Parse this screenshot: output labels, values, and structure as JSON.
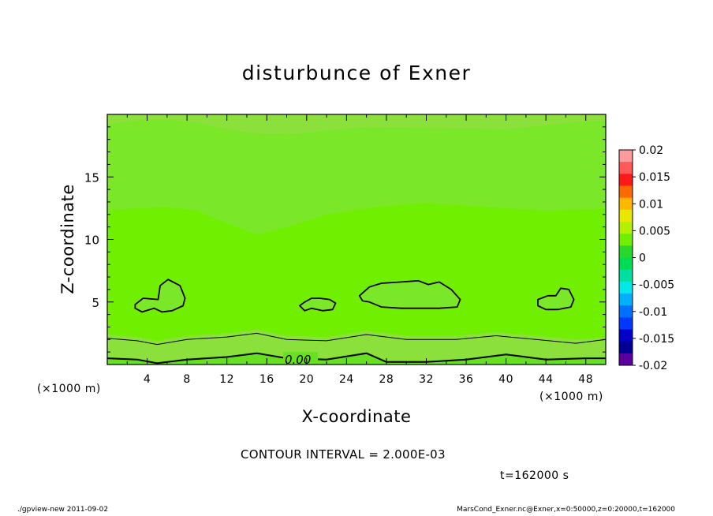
{
  "chart_data": {
    "type": "heatmap",
    "title": "disturbunce of Exner",
    "xlabel": "X-coordinate",
    "ylabel": "Z-coordinate",
    "x_unit_left": "(×1000 m)",
    "x_unit_right": "(×1000 m)",
    "xlim": [
      0,
      50
    ],
    "ylim": [
      0,
      20
    ],
    "x_ticks": [
      4,
      8,
      12,
      16,
      20,
      24,
      28,
      32,
      36,
      40,
      44,
      48
    ],
    "y_ticks": [
      5,
      10,
      15
    ],
    "contour_label": "0.00",
    "colorbar": {
      "ticks": [
        "0.02",
        "0.015",
        "0.01",
        "0.005",
        "0",
        "-0.005",
        "-0.01",
        "-0.015",
        "-0.02"
      ],
      "colors": [
        "#ff9a9a",
        "#ff5a5a",
        "#ff1a1a",
        "#ff6a00",
        "#ffb800",
        "#e8e800",
        "#b4f000",
        "#70f000",
        "#2ad82a",
        "#00dd55",
        "#00e0a0",
        "#00e8e8",
        "#00b0ff",
        "#0070ff",
        "#0038ff",
        "#0000c8",
        "#000090",
        "#5a00a0"
      ]
    },
    "layers": [
      {
        "name": "band-upper",
        "color": "#8ce03c",
        "points": [
          [
            0,
            19.2
          ],
          [
            3,
            19.5
          ],
          [
            6,
            19.6
          ],
          [
            9,
            19.3
          ],
          [
            12,
            18.8
          ],
          [
            15,
            18.5
          ],
          [
            18,
            18.4
          ],
          [
            21,
            18.6
          ],
          [
            26,
            19.0
          ],
          [
            32,
            18.9
          ],
          [
            40,
            18.8
          ],
          [
            46,
            19.3
          ],
          [
            50,
            19.5
          ],
          [
            50,
            20
          ],
          [
            0,
            20
          ]
        ]
      },
      {
        "name": "band-mid-upper",
        "color": "#7ae828",
        "points": [
          [
            0,
            12.3
          ],
          [
            3,
            12.5
          ],
          [
            6,
            12.6
          ],
          [
            9,
            12.3
          ],
          [
            12,
            11.3
          ],
          [
            15,
            10.4
          ],
          [
            18,
            11.0
          ],
          [
            22,
            12.0
          ],
          [
            27,
            12.6
          ],
          [
            32,
            12.9
          ],
          [
            38,
            12.6
          ],
          [
            44,
            12.3
          ],
          [
            48,
            12.4
          ],
          [
            50,
            12.5
          ],
          [
            50,
            19.5
          ],
          [
            46,
            19.3
          ],
          [
            40,
            18.8
          ],
          [
            32,
            18.9
          ],
          [
            26,
            19.0
          ],
          [
            21,
            18.6
          ],
          [
            18,
            18.4
          ],
          [
            15,
            18.5
          ],
          [
            12,
            18.8
          ],
          [
            9,
            19.3
          ],
          [
            6,
            19.6
          ],
          [
            3,
            19.5
          ],
          [
            0,
            19.2
          ]
        ]
      },
      {
        "name": "band-lower",
        "color": "#8ce03c",
        "points": [
          [
            0,
            2.4
          ],
          [
            3,
            2.2
          ],
          [
            5,
            1.9
          ],
          [
            8,
            2.3
          ],
          [
            12,
            2.5
          ],
          [
            15,
            2.8
          ],
          [
            18,
            2.3
          ],
          [
            22,
            2.2
          ],
          [
            26,
            2.7
          ],
          [
            30,
            2.3
          ],
          [
            35,
            2.3
          ],
          [
            39,
            2.6
          ],
          [
            43,
            2.3
          ],
          [
            47,
            2.0
          ],
          [
            50,
            2.2
          ],
          [
            50,
            0
          ],
          [
            0,
            0
          ]
        ]
      },
      {
        "name": "band-bottom",
        "color": "#66e020",
        "points": [
          [
            0,
            0.6
          ],
          [
            3,
            0.5
          ],
          [
            5,
            0.2
          ],
          [
            8,
            0.5
          ],
          [
            12,
            0.7
          ],
          [
            15,
            1.0
          ],
          [
            18,
            0.6
          ],
          [
            22,
            0.5
          ],
          [
            26,
            1.0
          ],
          [
            28,
            0.3
          ],
          [
            32,
            0.3
          ],
          [
            36,
            0.5
          ],
          [
            40,
            0.9
          ],
          [
            44,
            0.5
          ],
          [
            48,
            0.6
          ],
          [
            50,
            0.6
          ],
          [
            50,
            0
          ],
          [
            0,
            0
          ]
        ]
      }
    ],
    "blobs": [
      {
        "name": "blob-1",
        "points": [
          [
            2.8,
            4.8
          ],
          [
            3.6,
            5.3
          ],
          [
            5.1,
            5.2
          ],
          [
            5.3,
            6.3
          ],
          [
            6.1,
            6.8
          ],
          [
            7.3,
            6.3
          ],
          [
            7.8,
            5.3
          ],
          [
            7.6,
            4.7
          ],
          [
            6.5,
            4.3
          ],
          [
            5.5,
            4.2
          ],
          [
            4.7,
            4.5
          ],
          [
            3.5,
            4.2
          ],
          [
            2.8,
            4.5
          ]
        ]
      },
      {
        "name": "blob-2",
        "points": [
          [
            19.3,
            4.7
          ],
          [
            19.8,
            5.0
          ],
          [
            20.5,
            5.3
          ],
          [
            21.3,
            5.3
          ],
          [
            22.3,
            5.2
          ],
          [
            22.9,
            4.9
          ],
          [
            22.6,
            4.4
          ],
          [
            21.6,
            4.3
          ],
          [
            20.5,
            4.5
          ],
          [
            19.8,
            4.3
          ]
        ]
      },
      {
        "name": "blob-3",
        "points": [
          [
            25.3,
            5.5
          ],
          [
            26.3,
            6.2
          ],
          [
            27.5,
            6.5
          ],
          [
            29.5,
            6.6
          ],
          [
            31.2,
            6.7
          ],
          [
            32.2,
            6.4
          ],
          [
            33.3,
            6.6
          ],
          [
            34.5,
            6.0
          ],
          [
            35.4,
            5.2
          ],
          [
            35.1,
            4.6
          ],
          [
            33.3,
            4.5
          ],
          [
            31.6,
            4.5
          ],
          [
            29.5,
            4.5
          ],
          [
            27.5,
            4.6
          ],
          [
            26.3,
            5.0
          ],
          [
            25.6,
            5.1
          ]
        ]
      },
      {
        "name": "blob-4",
        "points": [
          [
            43.2,
            5.2
          ],
          [
            44.2,
            5.5
          ],
          [
            45.0,
            5.5
          ],
          [
            45.5,
            6.1
          ],
          [
            46.3,
            6.0
          ],
          [
            46.8,
            5.2
          ],
          [
            46.5,
            4.6
          ],
          [
            45.2,
            4.4
          ],
          [
            44.0,
            4.4
          ],
          [
            43.2,
            4.7
          ]
        ]
      }
    ],
    "contours": [
      {
        "name": "contour-thin",
        "width": 1,
        "points": [
          [
            0,
            2.1
          ],
          [
            3,
            1.9
          ],
          [
            5,
            1.6
          ],
          [
            8,
            2.0
          ],
          [
            12,
            2.2
          ],
          [
            15,
            2.5
          ],
          [
            18,
            2.0
          ],
          [
            22,
            1.9
          ],
          [
            26,
            2.4
          ],
          [
            30,
            2.0
          ],
          [
            35,
            2.0
          ],
          [
            39,
            2.3
          ],
          [
            43,
            2.0
          ],
          [
            47,
            1.7
          ],
          [
            50,
            2.0
          ]
        ]
      },
      {
        "name": "contour-zero",
        "width": 2,
        "points": [
          [
            0,
            0.5
          ],
          [
            3,
            0.4
          ],
          [
            5,
            0.1
          ],
          [
            8,
            0.4
          ],
          [
            12,
            0.6
          ],
          [
            15,
            0.9
          ],
          [
            18,
            0.5
          ],
          [
            22,
            0.4
          ],
          [
            26,
            0.9
          ],
          [
            28,
            0.2
          ],
          [
            32,
            0.2
          ],
          [
            36,
            0.4
          ],
          [
            40,
            0.8
          ],
          [
            44,
            0.4
          ],
          [
            48,
            0.5
          ],
          [
            50,
            0.5
          ]
        ]
      }
    ],
    "background_color": "#70f000"
  },
  "footer": {
    "interval": "CONTOUR INTERVAL = 2.000E-03",
    "time": "t=162000 s",
    "left": "./gpview-new 2011-09-02",
    "right": "MarsCond_Exner.nc@Exner,x=0:50000,z=0:20000,t=162000"
  }
}
